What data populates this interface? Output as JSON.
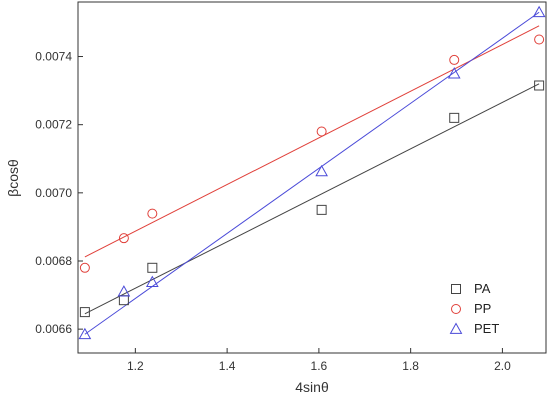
{
  "chart_data": {
    "type": "scatter",
    "title": "",
    "xlabel": "4sinθ",
    "ylabel": "βcosθ",
    "xlim": [
      1.075,
      2.095
    ],
    "ylim": [
      0.00653,
      0.00756
    ],
    "xticks": [
      1.2,
      1.4,
      1.6,
      1.8,
      2.0
    ],
    "yticks": [
      0.0066,
      0.0068,
      0.007,
      0.0072,
      0.0074
    ],
    "xtick_labels": [
      "1.2",
      "1.4",
      "1.6",
      "1.8",
      "2.0"
    ],
    "ytick_labels": [
      "0.0066",
      "0.0068",
      "0.0070",
      "0.0072",
      "0.0074"
    ],
    "grid": false,
    "legend_position": "bottom-right",
    "series": [
      {
        "name": "PA",
        "marker": "square",
        "color": "#444444",
        "x": [
          1.09,
          1.175,
          1.237,
          1.606,
          1.895,
          2.08
        ],
        "y": [
          0.00665,
          0.006685,
          0.00678,
          0.00695,
          0.00722,
          0.007315
        ],
        "fit": [
          [
            1.09,
            0.006645
          ],
          [
            2.08,
            0.00732
          ]
        ]
      },
      {
        "name": "PP",
        "marker": "circle",
        "color": "#e0403a",
        "x": [
          1.09,
          1.175,
          1.237,
          1.606,
          1.895,
          2.08
        ],
        "y": [
          0.00678,
          0.006867,
          0.006939,
          0.00718,
          0.00739,
          0.00745
        ],
        "fit": [
          [
            1.09,
            0.006812
          ],
          [
            2.08,
            0.00749
          ]
        ]
      },
      {
        "name": "PET",
        "marker": "triangle",
        "color": "#4a4ad8",
        "x": [
          1.09,
          1.175,
          1.237,
          1.606,
          1.895,
          2.08
        ],
        "y": [
          0.006585,
          0.00671,
          0.006738,
          0.007063,
          0.00735,
          0.00753
        ],
        "fit": [
          [
            1.09,
            0.006585
          ],
          [
            2.08,
            0.00753
          ]
        ]
      }
    ]
  }
}
